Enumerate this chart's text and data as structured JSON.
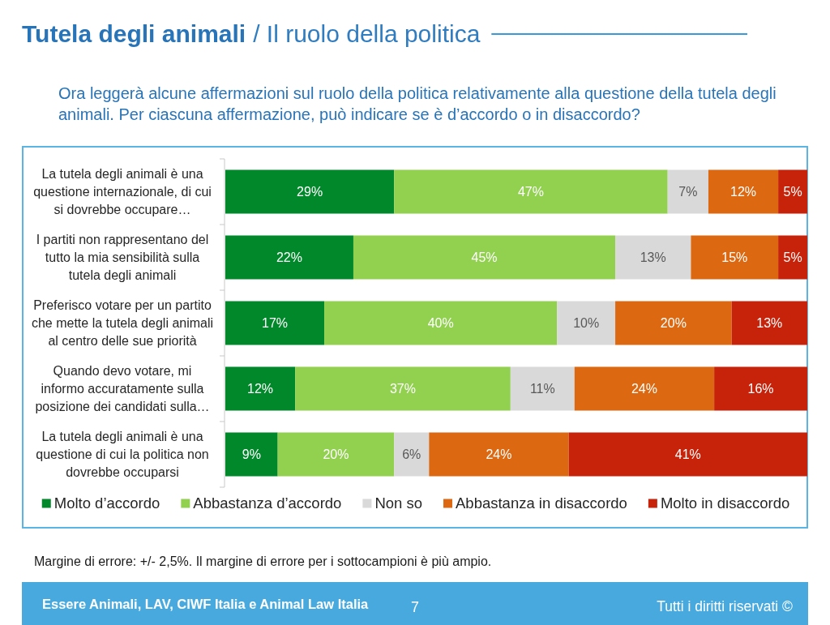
{
  "chart_data": {
    "type": "bar",
    "orientation": "horizontal",
    "stacked": true,
    "title": "Tutela degli animali",
    "subtitle": "/ Il ruolo della politica",
    "categories": [
      "La tutela degli animali è una questione internazionale, di cui si dovrebbe occupare…",
      "I partiti non rappresentano del tutto la mia sensibilità sulla tutela degli animali",
      "Preferisco votare per un partito che mette la tutela degli animali al centro delle sue priorità",
      "Quando devo votare, mi informo accuratamente sulla posizione dei candidati sulla…",
      "La tutela degli animali è una questione di cui la politica non dovrebbe occuparsi"
    ],
    "series": [
      {
        "name": "Molto d’accordo",
        "color": "#00882b",
        "values": [
          29,
          22,
          17,
          12,
          9
        ],
        "value_labels": [
          "29%",
          "22%",
          "17%",
          "12%",
          "9%"
        ]
      },
      {
        "name": "Abbastanza d’accordo",
        "color": "#92d050",
        "values": [
          47,
          45,
          40,
          37,
          20
        ],
        "value_labels": [
          "47%",
          "45%",
          "40%",
          "37%",
          "20%"
        ]
      },
      {
        "name": "Non so",
        "color": "#d9d9d9",
        "values": [
          7,
          13,
          10,
          11,
          6
        ],
        "value_labels": [
          "7%",
          "13%",
          "10%",
          "11%",
          "6%"
        ]
      },
      {
        "name": "Abbastanza in disaccordo",
        "color": "#dc6912",
        "values": [
          12,
          15,
          20,
          24,
          24
        ],
        "value_labels": [
          "12%",
          "15%",
          "20%",
          "24%",
          "24%"
        ]
      },
      {
        "name": "Molto in disaccordo",
        "color": "#c7230a",
        "values": [
          5,
          5,
          13,
          16,
          41
        ],
        "value_labels": [
          "5%",
          "5%",
          "13%",
          "16%",
          "41%"
        ]
      }
    ],
    "xlim": [
      0,
      100
    ],
    "tick_labels": "y",
    "legend": "bottom",
    "annotations": [
      "Ora leggerà alcune affermazioni sul ruolo della politica relativamente alla questione della tutela degli animali. Per ciascuna affermazione, può indicare se è d’accordo o in disaccordo?",
      "Margine di errore: +/- 2,5%. Il margine di errore per i sottocampioni è più ampio.",
      "Essere Animali, LAV, CIWF Italia e Animal Law Italia",
      "7",
      "Tutti i diritti riservati ©"
    ]
  }
}
